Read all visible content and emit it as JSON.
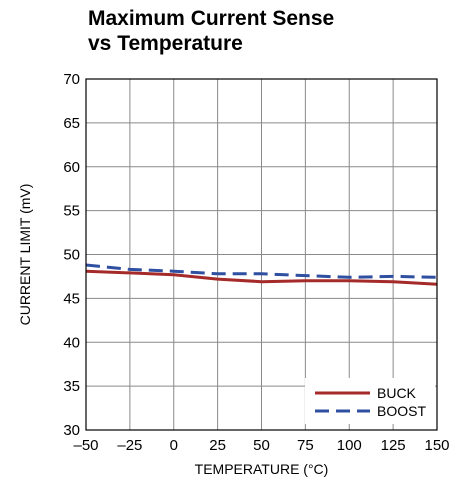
{
  "chart_data": {
    "type": "line",
    "title_lines": [
      "Maximum Current Sense",
      "vs Temperature"
    ],
    "xlabel": "TEMPERATURE (°C)",
    "ylabel": "CURRENT LIMIT (mV)",
    "xlim": [
      -50,
      150
    ],
    "ylim": [
      30,
      70
    ],
    "xticks": [
      -50,
      -25,
      0,
      25,
      50,
      75,
      100,
      125,
      150
    ],
    "xtick_labels": [
      "–50",
      "–25",
      "0",
      "25",
      "50",
      "75",
      "100",
      "125",
      "150"
    ],
    "yticks": [
      30,
      35,
      40,
      45,
      50,
      55,
      60,
      65,
      70
    ],
    "ytick_labels": [
      "30",
      "35",
      "40",
      "45",
      "50",
      "55",
      "60",
      "65",
      "70"
    ],
    "grid": true,
    "legend_position": "bottom-right",
    "series": [
      {
        "name": "BUCK",
        "color": "#a52a2a",
        "style": "solid",
        "x": [
          -50,
          -25,
          0,
          25,
          50,
          75,
          100,
          125,
          150
        ],
        "y": [
          48.1,
          47.9,
          47.7,
          47.2,
          46.9,
          47.0,
          47.0,
          46.9,
          46.6
        ]
      },
      {
        "name": "BOOST",
        "color": "#2f4fa0",
        "style": "dashed",
        "x": [
          -50,
          -25,
          0,
          25,
          50,
          75,
          100,
          125,
          150
        ],
        "y": [
          48.8,
          48.3,
          48.1,
          47.8,
          47.8,
          47.6,
          47.4,
          47.5,
          47.4
        ]
      }
    ]
  }
}
